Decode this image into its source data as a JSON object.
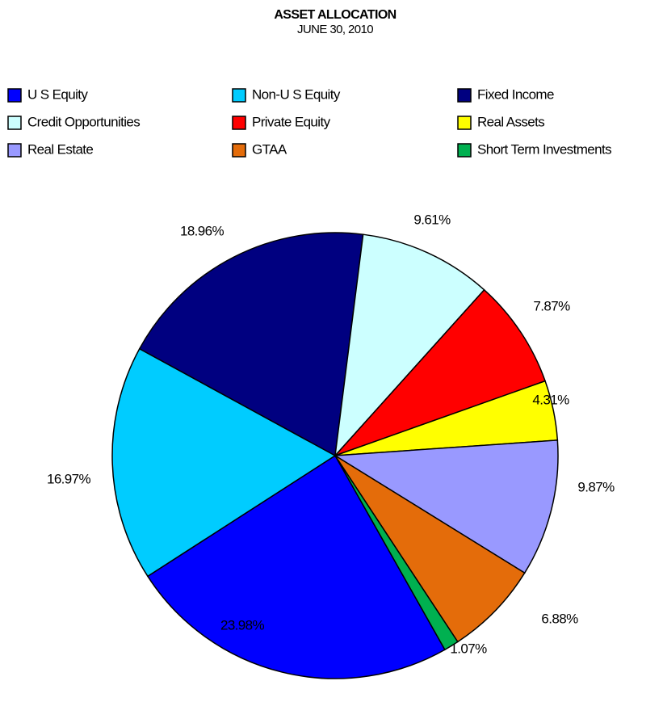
{
  "chart_data": {
    "type": "pie",
    "title": "ASSET ALLOCATION",
    "subtitle": "JUNE 30, 2010",
    "categories": [
      "U S Equity",
      "Non-U S Equity",
      "Fixed Income",
      "Credit Opportunities",
      "Private Equity",
      "Real Assets",
      "Real Estate",
      "GTAA",
      "Short Term Investments"
    ],
    "values": [
      23.98,
      16.97,
      18.96,
      9.61,
      7.87,
      4.31,
      9.87,
      6.88,
      1.07
    ],
    "value_labels": [
      "23.98%",
      "16.97%",
      "18.96%",
      "9.61%",
      "7.87%",
      "4.31%",
      "9.87%",
      "6.88%",
      "1.07%"
    ],
    "colors": [
      "#0000ff",
      "#00ccff",
      "#000080",
      "#ccffff",
      "#ff0000",
      "#ffff00",
      "#9999ff",
      "#e46c0a",
      "#00b050"
    ],
    "legend": "top"
  }
}
